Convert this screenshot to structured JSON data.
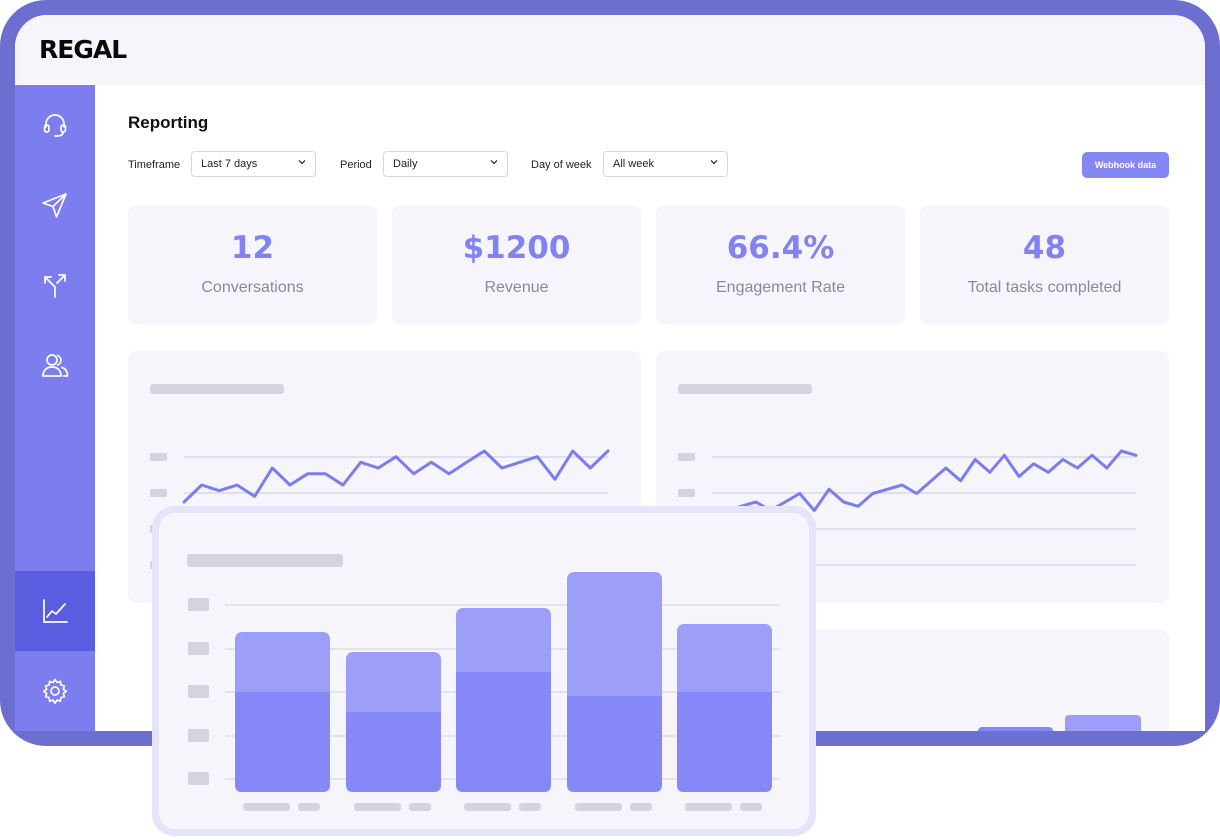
{
  "app": {
    "logo": "REGAL"
  },
  "sidebar": {
    "items": [
      {
        "icon": "headset-icon"
      },
      {
        "icon": "send-icon"
      },
      {
        "icon": "split-arrows-icon"
      },
      {
        "icon": "users-icon"
      },
      {
        "icon": "line-chart-icon",
        "active": true
      },
      {
        "icon": "gear-icon"
      }
    ]
  },
  "page": {
    "title": "Reporting"
  },
  "filters": {
    "timeframe_label": "Timeframe",
    "timeframe_value": "Last 7 days",
    "period_label": "Period",
    "period_value": "Daily",
    "dow_label": "Day of week",
    "dow_value": "All week",
    "webhook_button": "Webhook data"
  },
  "stats": [
    {
      "value": "12",
      "label": "Conversations"
    },
    {
      "value": "$1200",
      "label": "Revenue"
    },
    {
      "value": "66.4%",
      "label": "Engagement Rate"
    },
    {
      "value": "48",
      "label": "Total tasks completed"
    }
  ],
  "colors": {
    "frame": "#6c6fd0",
    "sidebar": "#7c7ef0",
    "sidebar_active": "#5b5de0",
    "accent": "#8183f0",
    "line": "#7b7cf0",
    "bar_dark": "#8788f8",
    "bar_light": "#9d9ef8",
    "placeholder": "#d4d4dc"
  },
  "chart_data": [
    {
      "type": "line",
      "y": [
        3,
        6,
        5,
        6,
        4,
        9,
        6,
        8,
        8,
        6,
        10,
        9,
        11,
        8,
        10,
        8,
        10,
        12,
        9,
        10,
        11,
        7,
        12,
        9,
        12
      ]
    },
    {
      "type": "line",
      "y": [
        1,
        2,
        3,
        4,
        2,
        4,
        6,
        2,
        7,
        4,
        3,
        6,
        7,
        8,
        6,
        9,
        12,
        9,
        14,
        11,
        15,
        10,
        13,
        11,
        14,
        12,
        15,
        12,
        16,
        15
      ]
    },
    {
      "type": "bar",
      "series": [
        {
          "values": [
            50,
            40,
            60,
            48,
            50
          ]
        },
        {
          "values": [
            30,
            30,
            32,
            62,
            34
          ]
        }
      ],
      "ylim": [
        0,
        100
      ]
    }
  ]
}
